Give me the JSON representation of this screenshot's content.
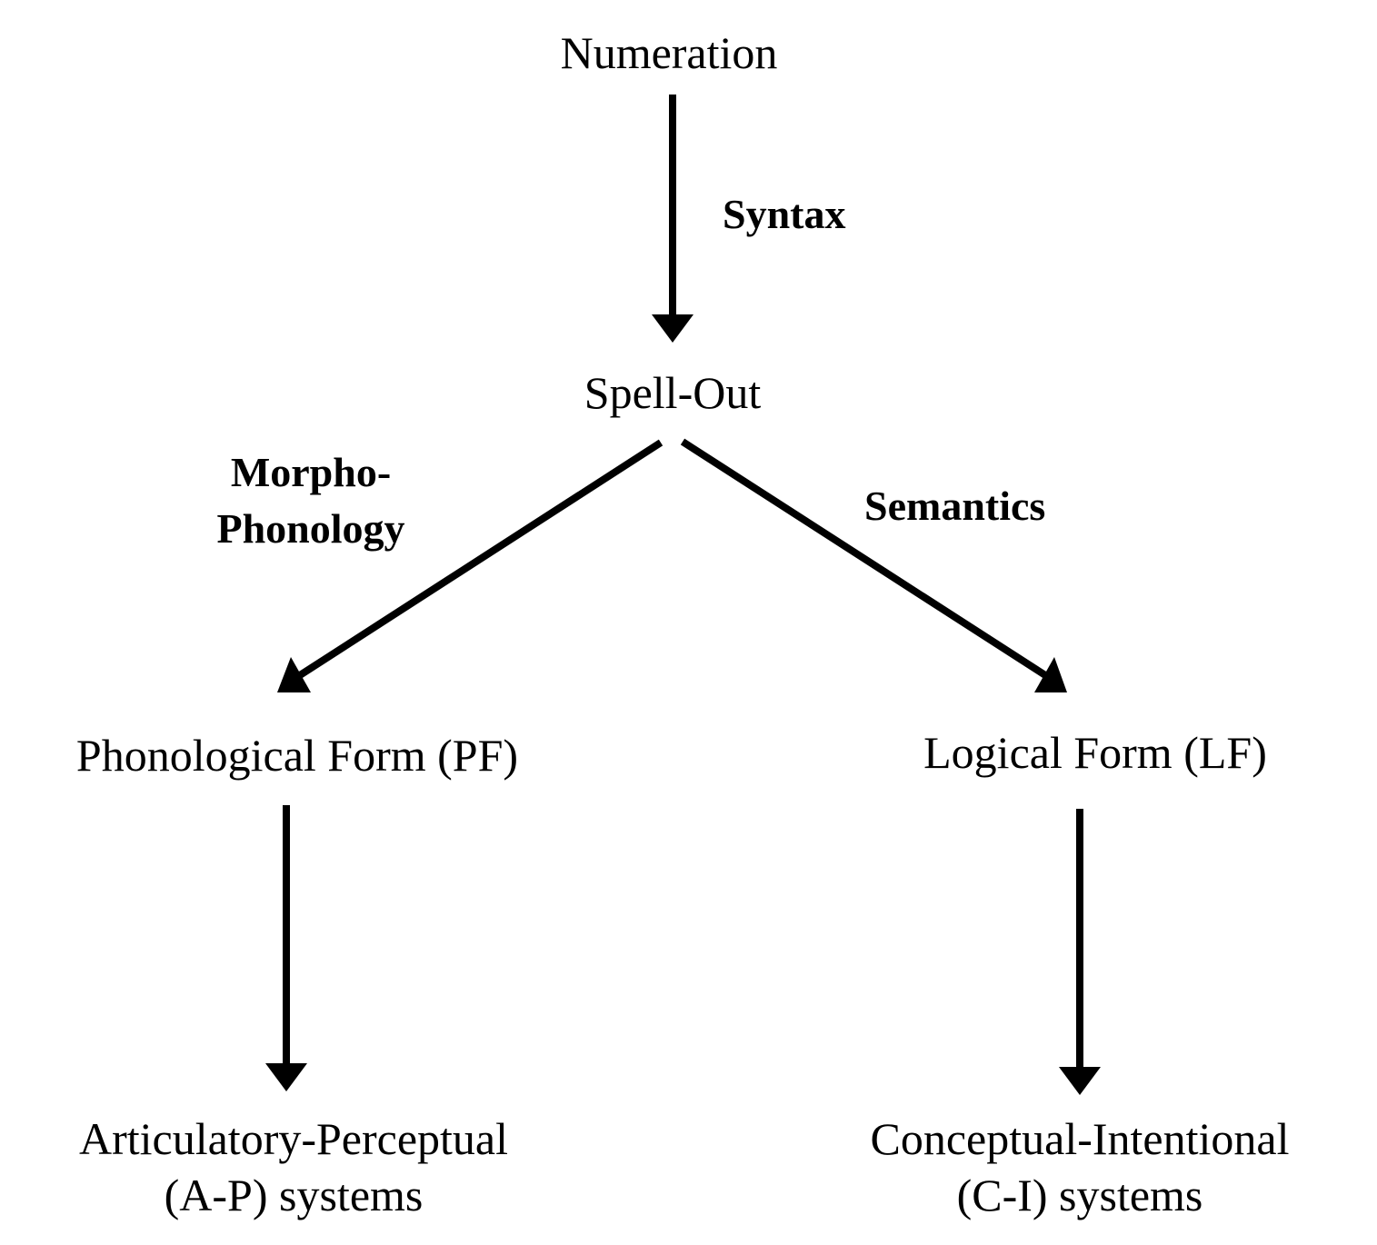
{
  "nodes": {
    "numeration": "Numeration",
    "spell_out": "Spell-Out",
    "pf": "Phonological Form (PF)",
    "lf": "Logical Form (LF)",
    "ap_line1": "Articulatory-Perceptual",
    "ap_line2": "(A-P) systems",
    "ci_line1": "Conceptual-Intentional",
    "ci_line2": "(C-I) systems"
  },
  "edge_labels": {
    "syntax": "Syntax",
    "morpho_line1": "Morpho-",
    "morpho_line2": "Phonology",
    "semantics": "Semantics"
  },
  "colors": {
    "ink": "#000000",
    "background": "#ffffff"
  }
}
